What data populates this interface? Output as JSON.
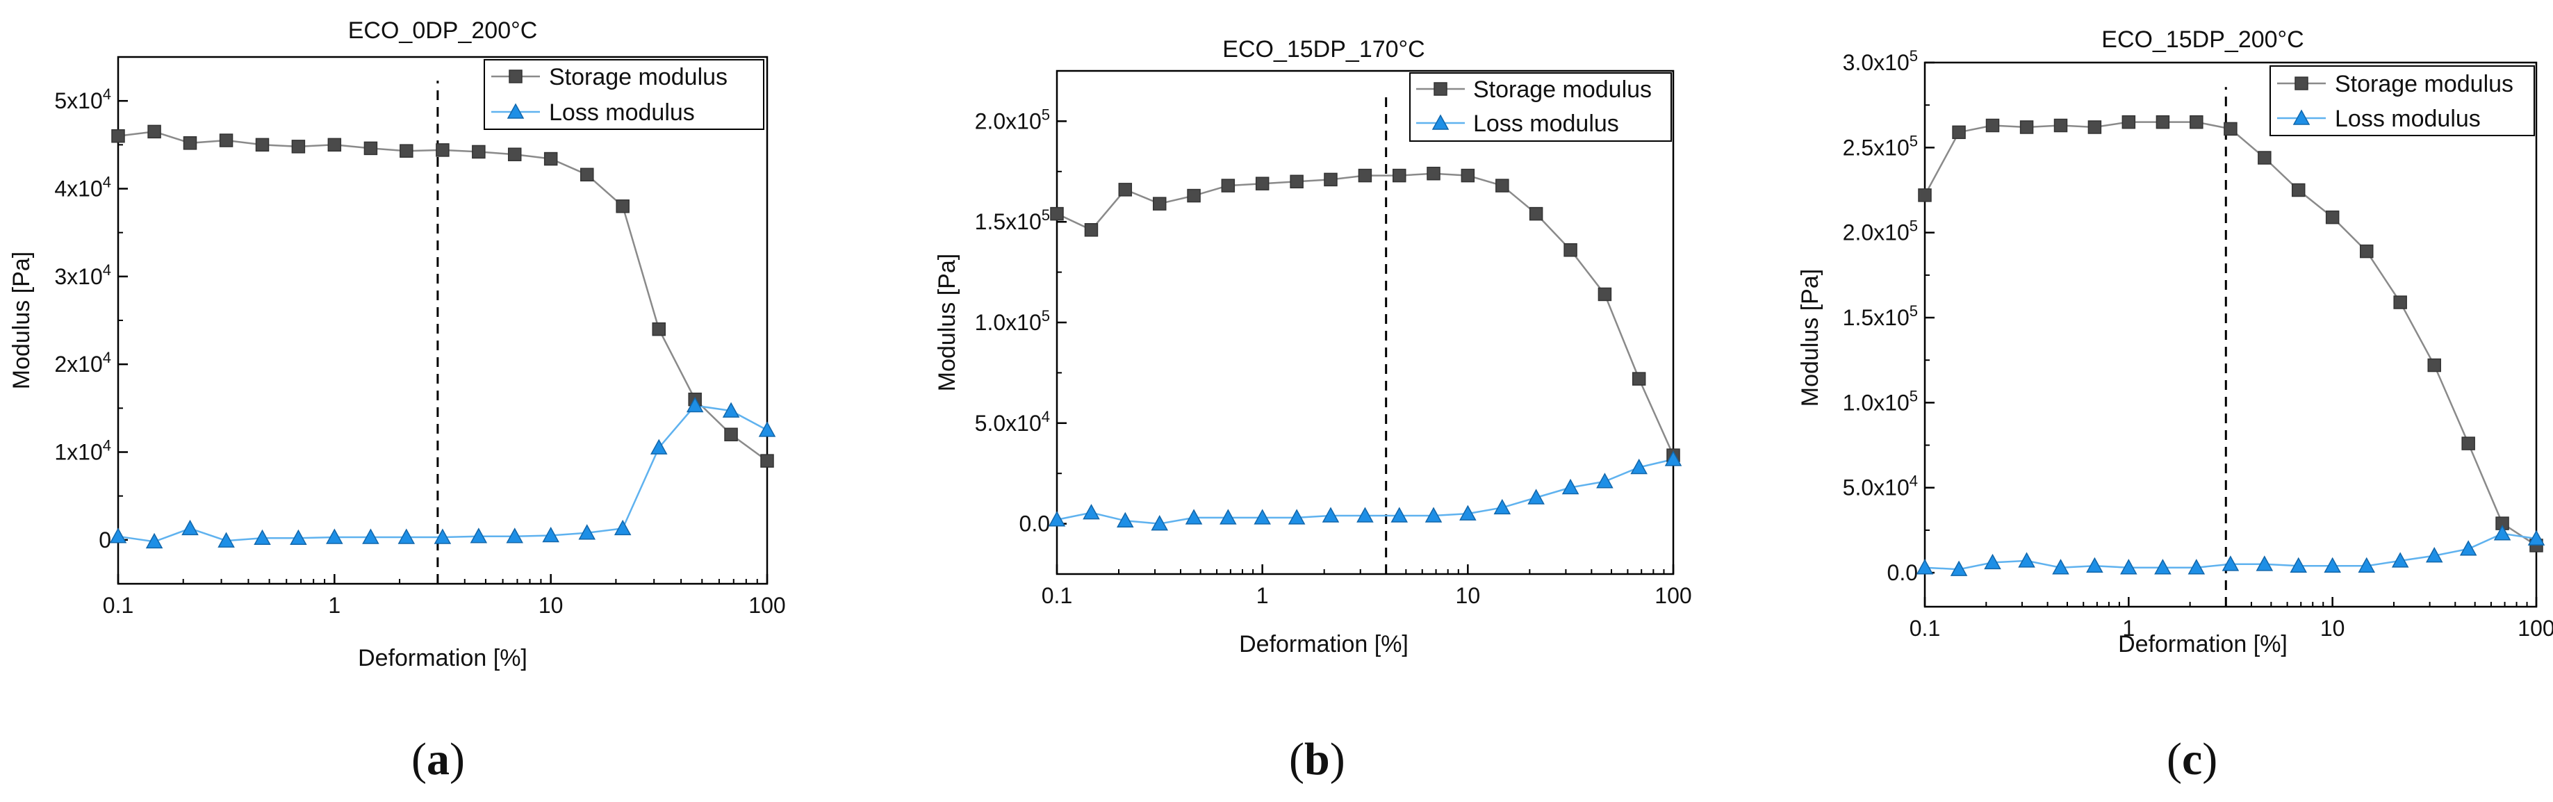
{
  "figure": {
    "colors": {
      "storage": "#4a4a4a",
      "storage_line": "#8a8a8a",
      "loss": "#1e8fe6",
      "loss_line": "#5fb2ef",
      "axis": "#000000"
    }
  },
  "chart_data": [
    {
      "type": "line",
      "id": "a",
      "panel_label": "a",
      "title": "ECO_0DP_200°C",
      "xlabel": "Deformation [%]",
      "ylabel": "Modulus [Pa]",
      "xscale": "log",
      "xlim": [
        0.1,
        100
      ],
      "ylim": [
        -5000,
        55000
      ],
      "x_ticks": [
        0.1,
        1,
        10,
        100
      ],
      "x_tick_labels": [
        "0.1",
        "1",
        "10",
        "100"
      ],
      "y_ticks": [
        0,
        10000,
        20000,
        30000,
        40000,
        50000
      ],
      "y_tick_labels": [
        {
          "base": "0",
          "exp": ""
        },
        {
          "base": "1x10",
          "exp": "4"
        },
        {
          "base": "2x10",
          "exp": "4"
        },
        {
          "base": "3x10",
          "exp": "4"
        },
        {
          "base": "4x10",
          "exp": "4"
        },
        {
          "base": "5x10",
          "exp": "4"
        }
      ],
      "vline_x": 3.0,
      "legend_position": "top-right",
      "series": [
        {
          "name": "Storage modulus",
          "marker": "square",
          "x": [
            0.1,
            0.147,
            0.215,
            0.316,
            0.464,
            0.681,
            1.0,
            1.47,
            2.15,
            3.16,
            4.64,
            6.81,
            10,
            14.7,
            21.5,
            31.6,
            46.4,
            68.1,
            100
          ],
          "values": [
            46000,
            46500,
            45200,
            45500,
            45000,
            44800,
            45000,
            44600,
            44300,
            44400,
            44200,
            43900,
            43400,
            41600,
            38000,
            24000,
            16000,
            12000,
            9000
          ]
        },
        {
          "name": "Loss modulus",
          "marker": "triangle",
          "x": [
            0.1,
            0.147,
            0.215,
            0.316,
            0.464,
            0.681,
            1.0,
            1.47,
            2.15,
            3.16,
            4.64,
            6.81,
            10,
            14.7,
            21.5,
            31.6,
            46.4,
            68.1,
            100
          ],
          "values": [
            400,
            -200,
            1300,
            -100,
            200,
            200,
            300,
            300,
            300,
            300,
            400,
            400,
            500,
            800,
            1300,
            10500,
            15300,
            14700,
            12500
          ]
        }
      ]
    },
    {
      "type": "line",
      "id": "b",
      "panel_label": "b",
      "title": "ECO_15DP_170°C",
      "xlabel": "Deformation [%]",
      "ylabel": "Modulus [Pa]",
      "xscale": "log",
      "xlim": [
        0.1,
        100
      ],
      "ylim": [
        -25000,
        225000
      ],
      "x_ticks": [
        0.1,
        1,
        10,
        100
      ],
      "x_tick_labels": [
        "0.1",
        "1",
        "10",
        "100"
      ],
      "y_ticks": [
        0,
        50000,
        100000,
        150000,
        200000
      ],
      "y_tick_labels": [
        {
          "base": "0.0",
          "exp": ""
        },
        {
          "base": "5.0x10",
          "exp": "4"
        },
        {
          "base": "1.0x10",
          "exp": "5"
        },
        {
          "base": "1.5x10",
          "exp": "5"
        },
        {
          "base": "2.0x10",
          "exp": "5"
        }
      ],
      "vline_x": 4.0,
      "legend_position": "top-right",
      "series": [
        {
          "name": "Storage modulus",
          "marker": "square",
          "x": [
            0.1,
            0.147,
            0.215,
            0.316,
            0.464,
            0.681,
            1.0,
            1.47,
            2.15,
            3.16,
            4.64,
            6.81,
            10,
            14.7,
            21.5,
            31.6,
            46.4,
            68.1,
            100
          ],
          "values": [
            154000,
            146000,
            166000,
            159000,
            163000,
            168000,
            169000,
            170000,
            171000,
            173000,
            173000,
            174000,
            173000,
            168000,
            154000,
            136000,
            114000,
            72000,
            34000
          ]
        },
        {
          "name": "Loss modulus",
          "marker": "triangle",
          "x": [
            0.1,
            0.147,
            0.215,
            0.316,
            0.464,
            0.681,
            1.0,
            1.47,
            2.15,
            3.16,
            4.64,
            6.81,
            10,
            14.7,
            21.5,
            31.6,
            46.4,
            68.1,
            100
          ],
          "values": [
            2000,
            5500,
            1500,
            0,
            3000,
            3000,
            3000,
            3000,
            4000,
            4000,
            4000,
            4000,
            5000,
            8000,
            13000,
            18000,
            21000,
            28000,
            32000
          ]
        }
      ]
    },
    {
      "type": "line",
      "id": "c",
      "panel_label": "c",
      "title": "ECO_15DP_200°C",
      "xlabel": "Deformation [%]",
      "ylabel": "Modulus [Pa]",
      "xscale": "log",
      "xlim": [
        0.1,
        100
      ],
      "ylim": [
        -20000,
        300000
      ],
      "x_ticks": [
        0.1,
        1,
        10,
        100
      ],
      "x_tick_labels": [
        "0.1",
        "1",
        "10",
        "100"
      ],
      "y_ticks": [
        0,
        50000,
        100000,
        150000,
        200000,
        250000,
        300000
      ],
      "y_tick_labels": [
        {
          "base": "0.0",
          "exp": ""
        },
        {
          "base": "5.0x10",
          "exp": "4"
        },
        {
          "base": "1.0x10",
          "exp": "5"
        },
        {
          "base": "1.5x10",
          "exp": "5"
        },
        {
          "base": "2.0x10",
          "exp": "5"
        },
        {
          "base": "2.5x10",
          "exp": "5"
        },
        {
          "base": "3.0x10",
          "exp": "5"
        }
      ],
      "vline_x": 3.0,
      "legend_position": "top-right",
      "series": [
        {
          "name": "Storage modulus",
          "marker": "square",
          "x": [
            0.1,
            0.147,
            0.215,
            0.316,
            0.464,
            0.681,
            1.0,
            1.47,
            2.15,
            3.16,
            4.64,
            6.81,
            10,
            14.7,
            21.5,
            31.6,
            46.4,
            68.1,
            100
          ],
          "values": [
            222000,
            259000,
            263000,
            262000,
            263000,
            262000,
            265000,
            265000,
            265000,
            261000,
            244000,
            225000,
            209000,
            189000,
            159000,
            122000,
            76000,
            29000,
            16000
          ]
        },
        {
          "name": "Loss modulus",
          "marker": "triangle",
          "x": [
            0.1,
            0.147,
            0.215,
            0.316,
            0.464,
            0.681,
            1.0,
            1.47,
            2.15,
            3.16,
            4.64,
            6.81,
            10,
            14.7,
            21.5,
            31.6,
            46.4,
            68.1,
            100
          ],
          "values": [
            3000,
            2000,
            6000,
            7000,
            3000,
            4000,
            3000,
            3000,
            3000,
            5000,
            5000,
            4000,
            4000,
            4000,
            7000,
            10000,
            14000,
            23000,
            20000
          ]
        }
      ]
    }
  ]
}
